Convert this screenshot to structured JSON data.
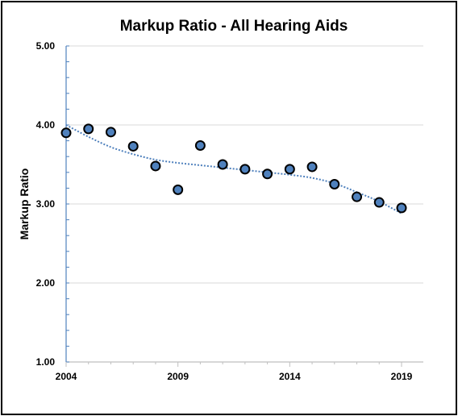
{
  "chart_data": {
    "type": "scatter",
    "title": "Markup Ratio - All Hearing Aids",
    "xlabel": "",
    "ylabel": "Markup Ratio",
    "xlim": [
      2004,
      2019
    ],
    "ylim": [
      1.0,
      5.0
    ],
    "x_ticks": [
      "2004",
      "2009",
      "2014",
      "2019"
    ],
    "y_ticks": [
      "1.00",
      "2.00",
      "3.00",
      "4.00",
      "5.00"
    ],
    "grid": "horizontal",
    "legend": "none",
    "trendline": "polynomial, dotted",
    "x": [
      2004,
      2005,
      2006,
      2007,
      2008,
      2009,
      2010,
      2011,
      2012,
      2013,
      2014,
      2015,
      2016,
      2017,
      2018,
      2019
    ],
    "y": [
      3.9,
      3.95,
      3.91,
      3.73,
      3.48,
      3.18,
      3.74,
      3.5,
      3.44,
      3.38,
      3.44,
      3.47,
      3.25,
      3.09,
      3.02,
      2.95
    ],
    "trend": [
      [
        2004,
        4.0
      ],
      [
        2005,
        3.85
      ],
      [
        2006,
        3.72
      ],
      [
        2007,
        3.63
      ],
      [
        2008,
        3.56
      ],
      [
        2009,
        3.52
      ],
      [
        2010,
        3.49
      ],
      [
        2011,
        3.46
      ],
      [
        2012,
        3.43
      ],
      [
        2013,
        3.4
      ],
      [
        2014,
        3.37
      ],
      [
        2015,
        3.33
      ],
      [
        2016,
        3.26
      ],
      [
        2017,
        3.15
      ],
      [
        2018,
        3.03
      ],
      [
        2019,
        2.88
      ]
    ],
    "colors": {
      "marker_fill": "#4f81bd",
      "marker_stroke": "#000000",
      "trend": "#4f81bd",
      "axis": "#4f81bd",
      "grid": "#d9d9d9"
    }
  }
}
